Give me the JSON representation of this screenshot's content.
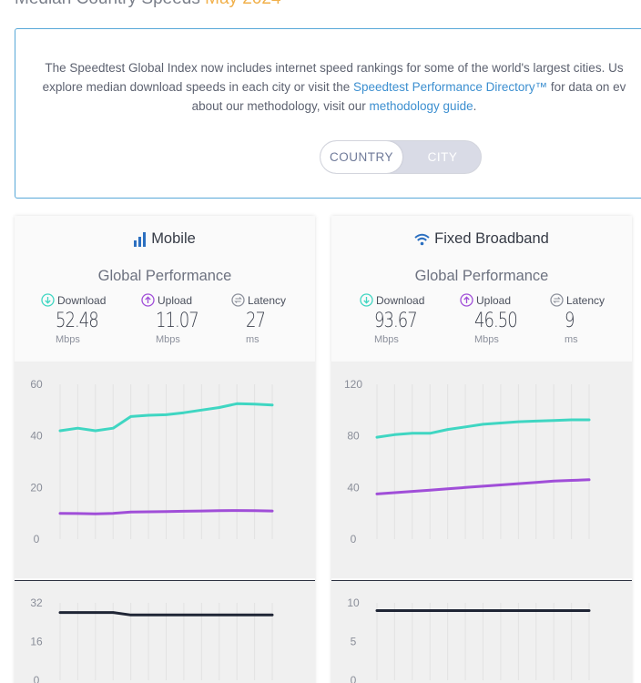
{
  "page": {
    "heading_part1": "Median Country Speeds",
    "heading_part2": "May 2024"
  },
  "info": {
    "line1": "The Speedtest Global Index now includes internet speed rankings for some of the world's largest cities. Us",
    "line2_pre": "explore median download speeds in each city or visit the ",
    "line2_link": "Speedtest Performance Directory™",
    "line2_post": " for data on ev",
    "line3_pre": "about our methodology, visit our ",
    "line3_link": "methodology guide",
    "line3_post": "."
  },
  "toggle": {
    "country_label": "COUNTRY",
    "city_label": "CITY",
    "selected": "COUNTRY"
  },
  "colors": {
    "download": "#3fd6c2",
    "upload": "#a04ed8",
    "latency": "#1f2535",
    "link": "#3c8fd0",
    "border": "#58a8d8"
  },
  "panels": [
    {
      "title": "Mobile",
      "icon": "signal-bars-icon",
      "subtitle": "Global Performance",
      "metrics": [
        {
          "label": "Download",
          "value": "52.48",
          "unit": "Mbps",
          "icon": "download-arrow-icon"
        },
        {
          "label": "Upload",
          "value": "11.07",
          "unit": "Mbps",
          "icon": "upload-arrow-icon"
        },
        {
          "label": "Latency",
          "value": "27",
          "unit": "ms",
          "icon": "latency-icon"
        }
      ]
    },
    {
      "title": "Fixed Broadband",
      "icon": "wifi-icon",
      "subtitle": "Global Performance",
      "metrics": [
        {
          "label": "Download",
          "value": "93.67",
          "unit": "Mbps",
          "icon": "download-arrow-icon"
        },
        {
          "label": "Upload",
          "value": "46.50",
          "unit": "Mbps",
          "icon": "upload-arrow-icon"
        },
        {
          "label": "Latency",
          "value": "9",
          "unit": "ms",
          "icon": "latency-icon"
        }
      ]
    }
  ],
  "chart_data": [
    {
      "type": "line",
      "panel": "Mobile",
      "ylim": [
        0,
        60
      ],
      "yticks": [
        "60",
        "40",
        "20",
        "0"
      ],
      "series": [
        {
          "values": [
            42,
            43,
            42,
            43,
            47.5,
            48,
            48.2,
            49,
            50,
            51,
            52.5,
            52.3,
            52
          ]
        },
        {
          "values": [
            10,
            9.9,
            9.8,
            10,
            10.5,
            10.6,
            10.7,
            10.8,
            10.9,
            11,
            11.1,
            11,
            10.9
          ]
        }
      ],
      "grid": true
    },
    {
      "type": "line",
      "panel": "Fixed Broadband",
      "ylim": [
        0,
        120
      ],
      "yticks": [
        "120",
        "80",
        "40",
        "0"
      ],
      "series": [
        {
          "values": [
            79,
            81,
            82,
            82,
            85,
            87,
            89,
            90,
            91,
            91.5,
            92,
            92.5,
            92.5
          ]
        },
        {
          "values": [
            35,
            36,
            37,
            38,
            39,
            40,
            41,
            42,
            43,
            44,
            45,
            45.5,
            46
          ]
        }
      ],
      "grid": true
    },
    {
      "type": "line",
      "panel": "Mobile",
      "ylim": [
        0,
        32
      ],
      "yticks": [
        "32",
        "16",
        "0"
      ],
      "series": [
        {
          "values": [
            28,
            28,
            28,
            28,
            27,
            27,
            27,
            27,
            27,
            27,
            27,
            27,
            27
          ]
        }
      ],
      "grid": true
    },
    {
      "type": "line",
      "panel": "Fixed Broadband",
      "ylim": [
        0,
        10
      ],
      "yticks": [
        "10",
        "5",
        "0"
      ],
      "series": [
        {
          "values": [
            9,
            9,
            9,
            9,
            9,
            9,
            9,
            9,
            9,
            9,
            9,
            9,
            9
          ]
        }
      ],
      "grid": true
    }
  ]
}
